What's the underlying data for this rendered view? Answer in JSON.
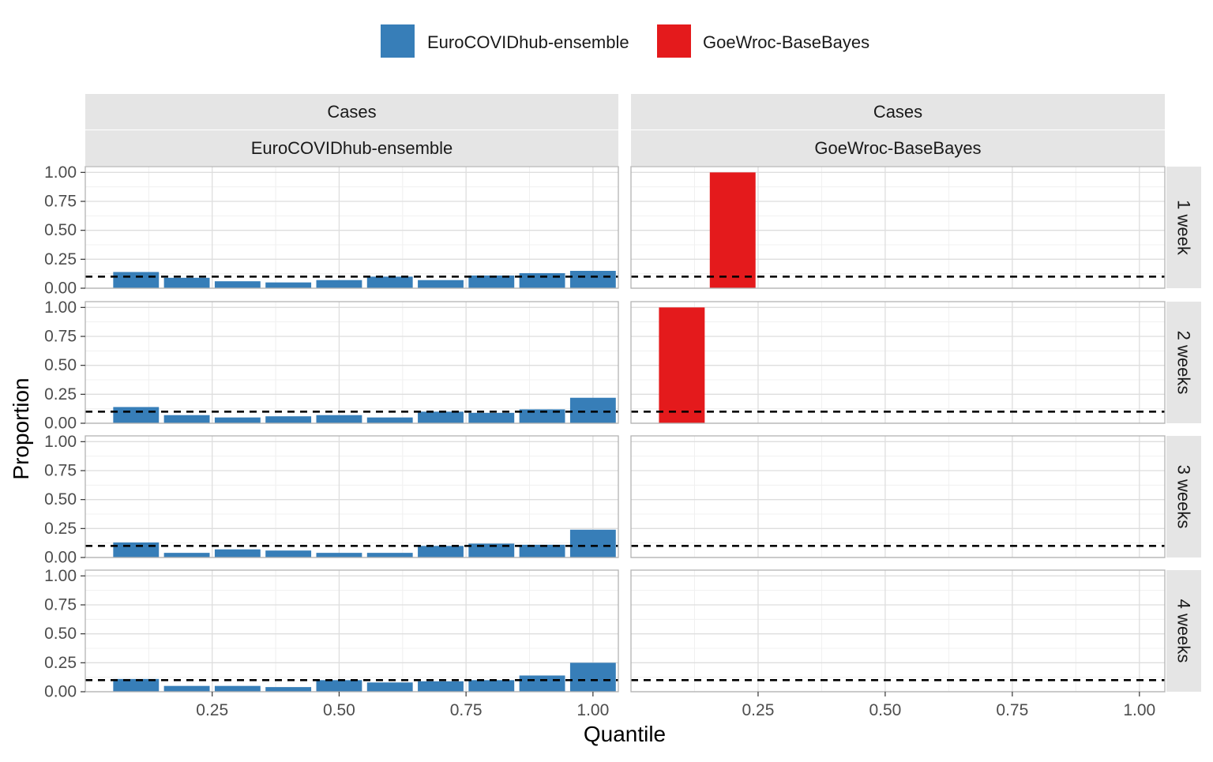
{
  "chart_data": {
    "type": "bar",
    "title": "",
    "xlabel": "Quantile",
    "ylabel": "Proportion",
    "xlim": [
      0,
      1.05
    ],
    "ylim": [
      0,
      1.05
    ],
    "x_ticks": [
      0.25,
      0.5,
      0.75,
      1.0
    ],
    "x_tick_labels": [
      "0.25",
      "0.50",
      "0.75",
      "1.00"
    ],
    "y_ticks": [
      0,
      0.25,
      0.5,
      0.75,
      1.0
    ],
    "y_tick_labels": [
      "0.00",
      "0.25",
      "0.50",
      "0.75",
      "1.00"
    ],
    "reference_line": {
      "y": 0.1,
      "style": "dashed",
      "color": "#000000"
    },
    "grid": true,
    "legend": {
      "position": "top",
      "entries": [
        {
          "name": "EuroCOVIDhub-ensemble",
          "color": "#377eb8"
        },
        {
          "name": "GoeWroc-BaseBayes",
          "color": "#e41a1c"
        }
      ]
    },
    "x": [
      0.1,
      0.2,
      0.3,
      0.4,
      0.5,
      0.6,
      0.7,
      0.8,
      0.9,
      1.0
    ],
    "bar_width": 0.09,
    "columns": [
      {
        "strip_top": "Cases",
        "strip_model": "EuroCOVIDhub-ensemble",
        "color": "#377eb8"
      },
      {
        "strip_top": "Cases",
        "strip_model": "GoeWroc-BaseBayes",
        "color": "#e41a1c"
      }
    ],
    "rows": [
      {
        "label": "1 week"
      },
      {
        "label": "2 weeks"
      },
      {
        "label": "3 weeks"
      },
      {
        "label": "4 weeks"
      }
    ],
    "panels": [
      {
        "model": "EuroCOVIDhub-ensemble",
        "horizon": "1 week",
        "values": [
          0.14,
          0.09,
          0.06,
          0.05,
          0.07,
          0.1,
          0.07,
          0.11,
          0.13,
          0.15
        ]
      },
      {
        "model": "GoeWroc-BaseBayes",
        "horizon": "1 week",
        "values": [
          0,
          1.0,
          0,
          0,
          0,
          0,
          0,
          0,
          0,
          0
        ]
      },
      {
        "model": "EuroCOVIDhub-ensemble",
        "horizon": "2 weeks",
        "values": [
          0.14,
          0.07,
          0.05,
          0.06,
          0.07,
          0.05,
          0.1,
          0.09,
          0.12,
          0.22
        ]
      },
      {
        "model": "GoeWroc-BaseBayes",
        "horizon": "2 weeks",
        "values": [
          1.0,
          0,
          0,
          0,
          0,
          0,
          0,
          0,
          0,
          0
        ]
      },
      {
        "model": "EuroCOVIDhub-ensemble",
        "horizon": "3 weeks",
        "values": [
          0.13,
          0.04,
          0.07,
          0.06,
          0.04,
          0.04,
          0.1,
          0.12,
          0.11,
          0.24
        ]
      },
      {
        "model": "GoeWroc-BaseBayes",
        "horizon": "3 weeks",
        "values": [
          0,
          0,
          0,
          0,
          0,
          0,
          0,
          0,
          0,
          0
        ]
      },
      {
        "model": "EuroCOVIDhub-ensemble",
        "horizon": "4 weeks",
        "values": [
          0.11,
          0.05,
          0.05,
          0.04,
          0.1,
          0.08,
          0.09,
          0.1,
          0.14,
          0.25
        ]
      },
      {
        "model": "GoeWroc-BaseBayes",
        "horizon": "4 weeks",
        "values": [
          0,
          0,
          0,
          0,
          0,
          0,
          0,
          0,
          0,
          0
        ]
      }
    ]
  }
}
